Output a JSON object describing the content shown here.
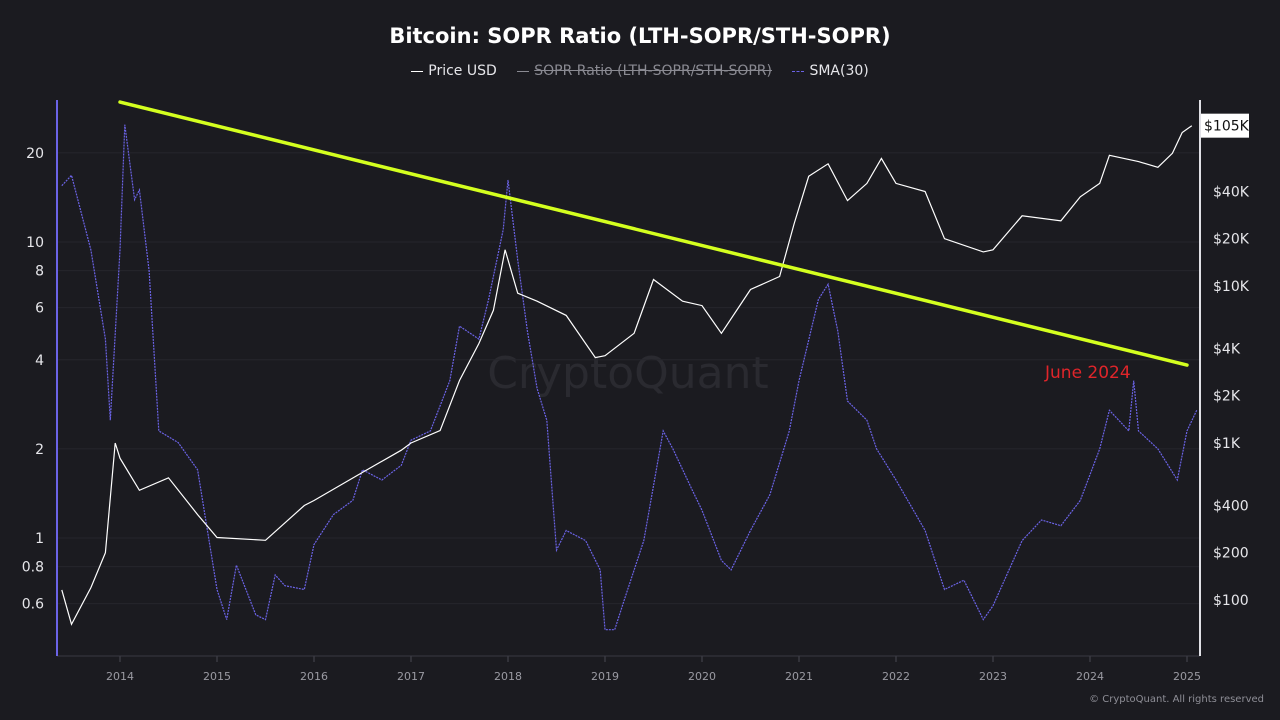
{
  "chart_data": {
    "type": "line",
    "title": "Bitcoin: SOPR Ratio (LTH-SOPR/STH-SOPR)",
    "legend": [
      {
        "name": "Price USD",
        "color": "#ffffff",
        "hidden": false
      },
      {
        "name": "SOPR Ratio (LTH-SOPR/STH-SOPR)",
        "color": "#8a8a92",
        "hidden": true
      },
      {
        "name": "SMA(30)",
        "color": "#6b63e6",
        "hidden": false
      }
    ],
    "legend_position": "top-center",
    "x_ticks": [
      "2014",
      "2015",
      "2016",
      "2017",
      "2018",
      "2019",
      "2020",
      "2021",
      "2022",
      "2023",
      "2024",
      "2025"
    ],
    "left_axis": {
      "scale": "log",
      "ticks": [
        "20",
        "10",
        "8",
        "6",
        "4",
        "2",
        "1",
        "0.8",
        "0.6"
      ],
      "tick_values": [
        20,
        10,
        8,
        6,
        4,
        2,
        1,
        0.8,
        0.6
      ]
    },
    "right_axis": {
      "scale": "log",
      "ticks": [
        "$40K",
        "$20K",
        "$10K",
        "$4K",
        "$2K",
        "$1K",
        "$400",
        "$200",
        "$100"
      ],
      "tick_values": [
        40000,
        20000,
        10000,
        4000,
        2000,
        1000,
        400,
        200,
        100
      ],
      "current_label": "$105K"
    },
    "grid": true,
    "series": [
      {
        "name": "SMA(30)",
        "axis": "left",
        "color": "#6b63e6",
        "x": [
          2013.4,
          2013.5,
          2013.7,
          2013.85,
          2013.9,
          2014.0,
          2014.05,
          2014.15,
          2014.2,
          2014.3,
          2014.4,
          2014.6,
          2014.8,
          2015.0,
          2015.1,
          2015.2,
          2015.4,
          2015.5,
          2015.6,
          2015.7,
          2015.9,
          2016.0,
          2016.2,
          2016.4,
          2016.5,
          2016.7,
          2016.9,
          2017.0,
          2017.2,
          2017.4,
          2017.5,
          2017.7,
          2017.8,
          2017.95,
          2018.0,
          2018.1,
          2018.2,
          2018.3,
          2018.4,
          2018.5,
          2018.6,
          2018.8,
          2018.95,
          2019.0,
          2019.1,
          2019.2,
          2019.4,
          2019.6,
          2019.7,
          2019.9,
          2020.0,
          2020.2,
          2020.3,
          2020.5,
          2020.7,
          2020.9,
          2021.0,
          2021.2,
          2021.3,
          2021.4,
          2021.5,
          2021.7,
          2021.8,
          2022.0,
          2022.3,
          2022.5,
          2022.7,
          2022.9,
          2023.0,
          2023.3,
          2023.5,
          2023.7,
          2023.9,
          2024.1,
          2024.2,
          2024.4,
          2024.45,
          2024.5,
          2024.7,
          2024.9,
          2025.0,
          2025.1
        ],
        "y": [
          15.5,
          16.8,
          9.4,
          4.7,
          2.5,
          9.4,
          24.9,
          13.9,
          15,
          8,
          2.3,
          2.1,
          1.7,
          0.67,
          0.53,
          0.81,
          0.55,
          0.53,
          0.75,
          0.69,
          0.67,
          0.95,
          1.2,
          1.34,
          1.7,
          1.57,
          1.76,
          2.14,
          2.3,
          3.4,
          5.2,
          4.7,
          6.4,
          11,
          16.2,
          8.7,
          5,
          3.2,
          2.5,
          0.91,
          1.06,
          0.98,
          0.78,
          0.49,
          0.49,
          0.62,
          0.98,
          2.3,
          2,
          1.45,
          1.24,
          0.84,
          0.78,
          1.06,
          1.4,
          2.3,
          3.4,
          6.4,
          7.2,
          5,
          2.9,
          2.5,
          2,
          1.57,
          1.06,
          0.67,
          0.72,
          0.53,
          0.59,
          0.98,
          1.15,
          1.1,
          1.34,
          2,
          2.7,
          2.3,
          3.4,
          2.3,
          2,
          1.57,
          2.3,
          2.7
        ]
      },
      {
        "name": "Price USD",
        "axis": "right",
        "color": "#ffffff",
        "x": [
          2013.4,
          2013.5,
          2013.7,
          2013.85,
          2013.95,
          2014.0,
          2014.2,
          2014.5,
          2014.8,
          2015.0,
          2015.5,
          2015.9,
          2016.0,
          2016.5,
          2016.9,
          2017.0,
          2017.3,
          2017.5,
          2017.7,
          2017.85,
          2017.97,
          2018.1,
          2018.3,
          2018.6,
          2018.9,
          2019.0,
          2019.3,
          2019.5,
          2019.8,
          2020.0,
          2020.2,
          2020.5,
          2020.8,
          2020.95,
          2021.1,
          2021.3,
          2021.5,
          2021.7,
          2021.85,
          2022.0,
          2022.3,
          2022.5,
          2022.9,
          2023.0,
          2023.3,
          2023.7,
          2023.9,
          2024.1,
          2024.2,
          2024.5,
          2024.7,
          2024.85,
          2024.95,
          2025.05
        ],
        "y": [
          116,
          70,
          120,
          200,
          1000,
          800,
          500,
          600,
          350,
          250,
          240,
          400,
          430,
          650,
          900,
          1000,
          1200,
          2500,
          4300,
          7000,
          17000,
          9000,
          8000,
          6500,
          3500,
          3600,
          5000,
          11000,
          8000,
          7500,
          5000,
          9500,
          11500,
          25000,
          50000,
          60000,
          35000,
          45000,
          65000,
          45000,
          40000,
          20000,
          16500,
          17000,
          28000,
          26000,
          37000,
          45000,
          68000,
          62000,
          57000,
          70000,
          95000,
          105000
        ]
      }
    ],
    "trendline": {
      "color": "#d4ff1f",
      "x": [
        2014.0,
        2025.0
      ],
      "y": [
        29.7,
        3.84
      ]
    },
    "annotations": [
      {
        "text": "June 2024",
        "color": "#e0252a"
      }
    ],
    "watermark": "CryptoQuant"
  },
  "footer": "© CryptoQuant. All rights reserved"
}
